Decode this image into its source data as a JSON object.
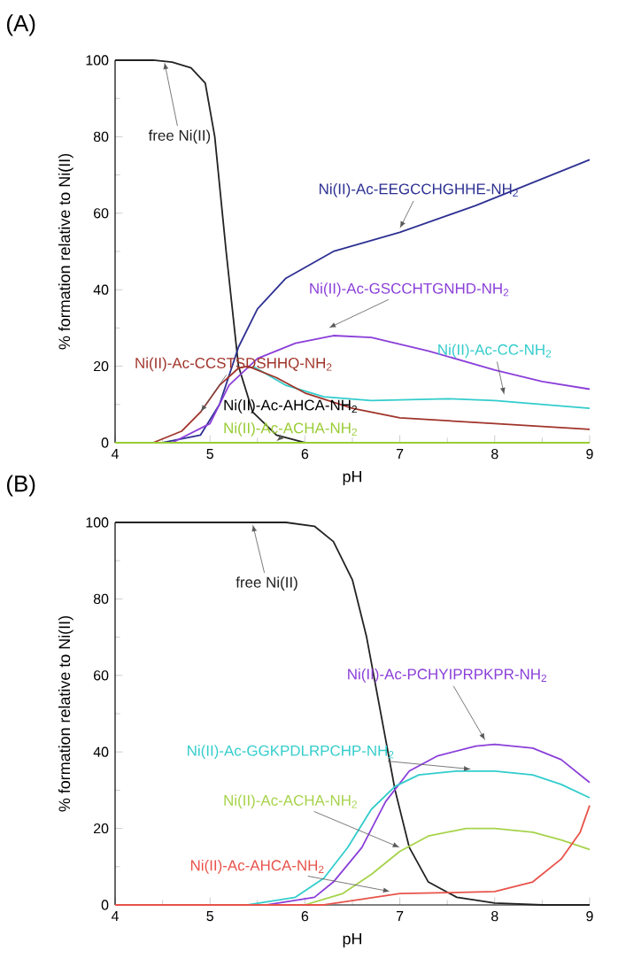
{
  "chart_data": [
    {
      "type": "line",
      "title": "(A)",
      "xlabel": "pH",
      "ylabel": "% formation relative to Ni(II)",
      "xlim": [
        4,
        9
      ],
      "ylim": [
        0,
        100
      ],
      "xticks": [
        4,
        5,
        6,
        7,
        8,
        9
      ],
      "yticks": [
        0,
        20,
        40,
        60,
        80,
        100
      ],
      "series": [
        {
          "name": "free Ni(II)",
          "color": "#222222",
          "x": [
            4,
            4.4,
            4.6,
            4.8,
            4.95,
            5.05,
            5.17,
            5.3,
            5.45,
            5.7,
            6,
            9
          ],
          "values": [
            100,
            100,
            99.5,
            98,
            94,
            80,
            50,
            20,
            8,
            2,
            0,
            0
          ]
        },
        {
          "name": "Ni(II)-Ac-EEGCCHGHHE-NH$_{2}$",
          "color": "#2e3192",
          "x": [
            4,
            4.5,
            4.9,
            5.1,
            5.3,
            5.5,
            5.8,
            6.3,
            7,
            7.8,
            8.4,
            9
          ],
          "values": [
            0,
            0,
            2,
            10,
            25,
            35,
            43,
            50,
            55,
            62,
            68,
            74
          ]
        },
        {
          "name": "Ni(II)-Ac-GSCCHTGNHD-NH$_{2}$",
          "color": "#8b3fd9",
          "x": [
            4,
            4.6,
            5.0,
            5.2,
            5.5,
            5.9,
            6.3,
            6.7,
            7.3,
            8,
            8.5,
            9
          ],
          "values": [
            0,
            0,
            5,
            15,
            22,
            26,
            28,
            27.5,
            24,
            19,
            16,
            14
          ]
        },
        {
          "name": "Ni(II)-Ac-CC-NH$_{2}$",
          "color": "#33cccc",
          "x": [
            5.45,
            5.8,
            6.2,
            6.7,
            7.5,
            8,
            8.5,
            9
          ],
          "values": [
            20,
            15,
            12,
            11,
            11.5,
            11,
            10,
            9
          ]
        },
        {
          "name": "Ni(II)-Ac-CCSTSDSHHQ-NH$_{2}$",
          "color": "#a0342a",
          "x": [
            4,
            4.4,
            4.7,
            4.9,
            5.1,
            5.3,
            5.4,
            5.7,
            6,
            6.5,
            7,
            8,
            9
          ],
          "values": [
            0,
            0,
            3,
            8,
            15,
            19.5,
            20,
            17,
            13,
            9,
            6.5,
            5,
            3.5
          ]
        },
        {
          "name": "Ni(II)-Ac-ACHA-NH$_{2}$",
          "color": "#99cc33",
          "x": [
            4,
            9
          ],
          "values": [
            0,
            0
          ]
        }
      ],
      "annotations": [
        "Ni(II)-Ac-AHCA-NH$_{2}$"
      ]
    },
    {
      "type": "line",
      "title": "(B)",
      "xlabel": "pH",
      "ylabel": "% formation relative to Ni(II)",
      "xlim": [
        4,
        9
      ],
      "ylim": [
        0,
        100
      ],
      "xticks": [
        4,
        5,
        6,
        7,
        8,
        9
      ],
      "yticks": [
        0,
        20,
        40,
        60,
        80,
        100
      ],
      "series": [
        {
          "name": "free Ni(II)",
          "color": "#222222",
          "x": [
            4,
            5.8,
            6.1,
            6.3,
            6.5,
            6.65,
            6.8,
            6.95,
            7.1,
            7.3,
            7.6,
            8,
            8.5,
            9
          ],
          "values": [
            100,
            100,
            99,
            95,
            85,
            70,
            50,
            30,
            15,
            6,
            2,
            0.5,
            0,
            0
          ]
        },
        {
          "name": "Ni(II)-Ac-PCHYIPRPKPR-NH$_{2}$",
          "color": "#8b3fd9",
          "x": [
            4,
            5.6,
            6.1,
            6.3,
            6.6,
            6.85,
            7.1,
            7.4,
            7.8,
            8,
            8.4,
            8.7,
            9
          ],
          "values": [
            0,
            0,
            2,
            6,
            15,
            27,
            35,
            39,
            41.5,
            42,
            41,
            38,
            32
          ]
        },
        {
          "name": "Ni(II)-Ac-GGKPDLRPCHP-NH$_{2}$",
          "color": "#33cccc",
          "x": [
            4,
            5.4,
            5.9,
            6.2,
            6.45,
            6.7,
            6.95,
            7.2,
            7.6,
            8,
            8.4,
            8.7,
            9
          ],
          "values": [
            0,
            0,
            2,
            7,
            15,
            25,
            31,
            34,
            35,
            35,
            34,
            31.5,
            28
          ]
        },
        {
          "name": "Ni(II)-Ac-ACHA-NH$_{2}$",
          "color": "#a6d34a",
          "x": [
            4,
            6,
            6.4,
            6.7,
            7.0,
            7.3,
            7.7,
            8,
            8.4,
            8.7,
            9
          ],
          "values": [
            0,
            0,
            3,
            8,
            14,
            18,
            20,
            20,
            19,
            17,
            14.5
          ]
        },
        {
          "name": "Ni(II)-Ac-AHCA-NH$_{2}$",
          "color": "#e8534a",
          "x": [
            4,
            6.2,
            6.6,
            7,
            7.5,
            8,
            8.4,
            8.7,
            8.9,
            9
          ],
          "values": [
            0,
            0,
            1.5,
            3,
            3.2,
            3.5,
            6,
            12,
            19,
            26
          ]
        }
      ]
    }
  ]
}
